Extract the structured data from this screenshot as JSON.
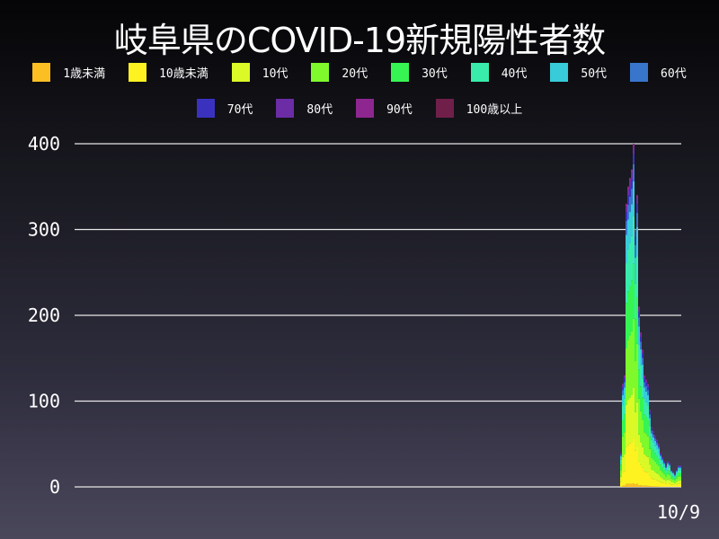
{
  "chart_data": {
    "type": "bar",
    "stacked": true,
    "title": "岐阜県のCOVID-19新規陽性者数",
    "xlabel": "",
    "ylabel": "",
    "ylim": [
      0,
      400
    ],
    "yticks": [
      "0",
      "100",
      "200",
      "300",
      "400"
    ],
    "grid": true,
    "legend_placement": "top",
    "end_date_label": "10/9",
    "series": [
      {
        "name": "1歳未満",
        "color": "#fbbf24"
      },
      {
        "name": "10歳未満",
        "color": "#fef221"
      },
      {
        "name": "10代",
        "color": "#dbf926"
      },
      {
        "name": "20代",
        "color": "#7ff92c"
      },
      {
        "name": "30代",
        "color": "#36f553"
      },
      {
        "name": "40代",
        "color": "#39ecab"
      },
      {
        "name": "50代",
        "color": "#38cbd9"
      },
      {
        "name": "60代",
        "color": "#3876cc"
      },
      {
        "name": "70代",
        "color": "#3a32bf"
      },
      {
        "name": "80代",
        "color": "#6b2ca6"
      },
      {
        "name": "90代",
        "color": "#8e2690"
      },
      {
        "name": "100歳以上",
        "color": "#6f1f4a"
      }
    ],
    "age_share": [
      0.01,
      0.13,
      0.15,
      0.2,
      0.16,
      0.14,
      0.1,
      0.05,
      0.03,
      0.02,
      0.01,
      0.0
    ],
    "daily_totals": [
      40,
      120,
      130,
      330,
      350,
      360,
      370,
      400,
      300,
      340,
      210,
      180,
      160,
      130,
      125,
      120,
      90,
      70,
      65,
      60,
      55,
      50,
      40,
      35,
      30,
      25,
      30,
      28,
      20,
      18,
      15,
      20,
      25,
      25
    ]
  }
}
